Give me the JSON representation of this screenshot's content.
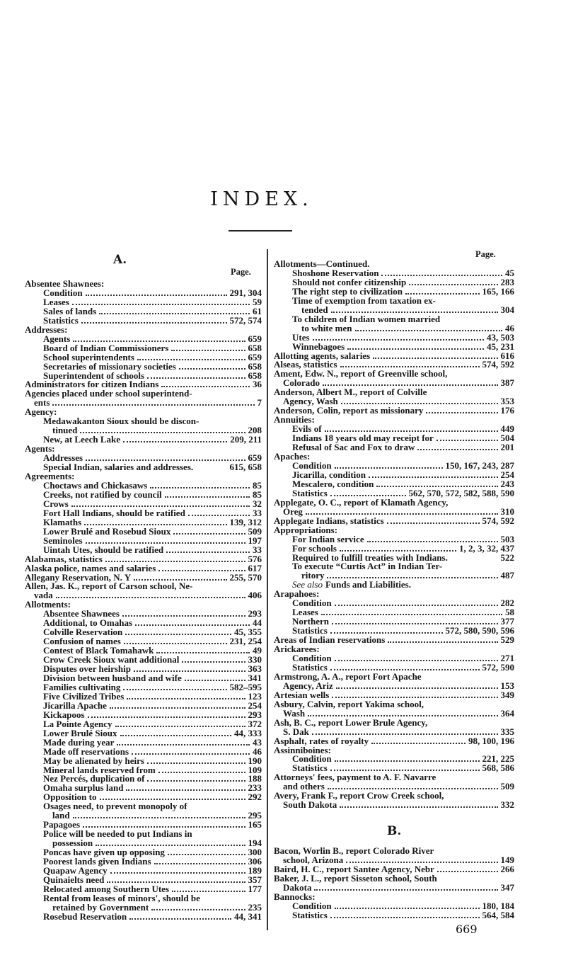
{
  "title": "INDEX.",
  "page_label": "Page.",
  "section_a": "A.",
  "section_b": "B.",
  "page_number": "669",
  "left_column": [
    {
      "t": "Absentee Shawnees:",
      "l": 0
    },
    {
      "t": "Condition",
      "p": "291, 304",
      "l": 1
    },
    {
      "t": "Leases",
      "p": "59",
      "l": 1
    },
    {
      "t": "Sales of lands",
      "p": "61",
      "l": 1
    },
    {
      "t": "Statistics",
      "p": "572, 574",
      "l": 1
    },
    {
      "t": "Addresses:",
      "l": 0
    },
    {
      "t": "Agents",
      "p": "659",
      "l": 1
    },
    {
      "t": "Board of Indian Commissioners",
      "p": "658",
      "l": 1
    },
    {
      "t": "School superintendents",
      "p": "659",
      "l": 1
    },
    {
      "t": "Secretaries of missionary societies",
      "p": "658",
      "l": 1
    },
    {
      "t": "Superintendent of schools",
      "p": "658",
      "l": 1
    },
    {
      "t": "Administrators for citizen Indians",
      "p": "36",
      "l": 0
    },
    {
      "t": "Agencies placed under school superintend-",
      "c": "ents",
      "p": "7",
      "l": 0
    },
    {
      "t": "Agency:",
      "l": 0
    },
    {
      "t": "Medawakanton Sioux should be discon-",
      "c": "tinued",
      "p": "208",
      "l": 1
    },
    {
      "t": "New, at Leech Lake",
      "p": "209, 211",
      "l": 1
    },
    {
      "t": "Agents:",
      "l": 0
    },
    {
      "t": "Addresses",
      "p": "659",
      "l": 1
    },
    {
      "t": "Special Indian, salaries and addresses.",
      "p": "615, 658",
      "l": 1,
      "nodots": true
    },
    {
      "t": "Agreements:",
      "l": 0
    },
    {
      "t": "Choctaws and Chickasaws",
      "p": "85",
      "l": 1
    },
    {
      "t": "Creeks, not ratified by council",
      "p": "85",
      "l": 1
    },
    {
      "t": "Crows",
      "p": "32",
      "l": 1
    },
    {
      "t": "Fort Hall Indians, should be ratified",
      "p": "33",
      "l": 1
    },
    {
      "t": "Klamaths",
      "p": "139, 312",
      "l": 1
    },
    {
      "t": "Lower Brulé and Rosebud Sioux",
      "p": "509",
      "l": 1
    },
    {
      "t": "Seminoles",
      "p": "197",
      "l": 1
    },
    {
      "t": "Uintah Utes, should be ratified",
      "p": "33",
      "l": 1
    },
    {
      "t": "Alabamas, statistics",
      "p": "576",
      "l": 0
    },
    {
      "t": "Alaska police, names and salaries",
      "p": "617",
      "l": 0
    },
    {
      "t": "Allegany Reservation, N. Y",
      "p": "255, 570",
      "l": 0
    },
    {
      "t": "Allen, Jas. K., report of Carson school, Ne-",
      "c": "vada",
      "p": "406",
      "l": 0
    },
    {
      "t": "Allotments:",
      "l": 0
    },
    {
      "t": "Absentee Shawnees",
      "p": "293",
      "l": 1
    },
    {
      "t": "Additional, to Omahas",
      "p": "44",
      "l": 1
    },
    {
      "t": "Colville Reservation",
      "p": "45, 355",
      "l": 1
    },
    {
      "t": "Confusion of names",
      "p": "231, 254",
      "l": 1
    },
    {
      "t": "Contest of Black Tomahawk",
      "p": "49",
      "l": 1
    },
    {
      "t": "Crow Creek Sioux want additional",
      "p": "330",
      "l": 1
    },
    {
      "t": "Disputes over heirship",
      "p": "363",
      "l": 1
    },
    {
      "t": "Division between husband and wife",
      "p": "341",
      "l": 1
    },
    {
      "t": "Families cultivating",
      "p": "582–595",
      "l": 1
    },
    {
      "t": "Five Civilized Tribes",
      "p": "123",
      "l": 1
    },
    {
      "t": "Jicarilla Apache",
      "p": "254",
      "l": 1
    },
    {
      "t": "Kickapoos",
      "p": "293",
      "l": 1
    },
    {
      "t": "La Pointe Agency",
      "p": "372",
      "l": 1
    },
    {
      "t": "Lower Brulé Sioux",
      "p": "44, 333",
      "l": 1
    },
    {
      "t": "Made during year",
      "p": "43",
      "l": 1
    },
    {
      "t": "Made off reservations",
      "p": "46",
      "l": 1
    },
    {
      "t": "May be alienated by heirs",
      "p": "190",
      "l": 1
    },
    {
      "t": "Mineral lands reserved from",
      "p": "109",
      "l": 1
    },
    {
      "t": "Nez Percés, duplication of",
      "p": "188",
      "l": 1
    },
    {
      "t": "Omaha surplus land",
      "p": "233",
      "l": 1
    },
    {
      "t": "Opposition to",
      "p": "292",
      "l": 1
    },
    {
      "t": "Osages need, to prevent monopoly of",
      "c": "land",
      "p": "295",
      "l": 1
    },
    {
      "t": "Papagoes",
      "p": "165",
      "l": 1
    },
    {
      "t": "Police will be needed to put Indians in",
      "c": "possession",
      "p": "194",
      "l": 1
    },
    {
      "t": "Poncas have given up opposing",
      "p": "300",
      "l": 1
    },
    {
      "t": "Poorest lands given Indians",
      "p": "306",
      "l": 1
    },
    {
      "t": "Quapaw Agency",
      "p": "189",
      "l": 1
    },
    {
      "t": "Quinaielts need",
      "p": "357",
      "l": 1
    },
    {
      "t": "Relocated among Southern Utes",
      "p": "177",
      "l": 1
    },
    {
      "t": "Rental from leases of minors', should be",
      "c": "retained by Government",
      "p": "235",
      "l": 1
    },
    {
      "t": "Rosebud Reservation",
      "p": "44, 341",
      "l": 1
    }
  ],
  "right_column": [
    {
      "t": "Allotments—Continued.",
      "l": 0
    },
    {
      "t": "Shoshone Reservation",
      "p": "45",
      "l": 1
    },
    {
      "t": "Should not confer citizenship",
      "p": "283",
      "l": 1
    },
    {
      "t": "The right step to civilization",
      "p": "165, 166",
      "l": 1
    },
    {
      "t": "Time of exemption from taxation ex-",
      "c": "tended",
      "p": "304",
      "l": 1
    },
    {
      "t": "To children of Indian women married",
      "c": "to white men",
      "p": "46",
      "l": 1
    },
    {
      "t": "Utes",
      "p": "43, 503",
      "l": 1
    },
    {
      "t": "Winnebagoes",
      "p": "45, 231",
      "l": 1
    },
    {
      "t": "Allotting agents, salaries",
      "p": "616",
      "l": 0
    },
    {
      "t": "Alseas, statistics",
      "p": "574, 592",
      "l": 0
    },
    {
      "t": "Ament, Edw. N., report of Greenville school,",
      "c": "Colorado",
      "p": "387",
      "l": 0
    },
    {
      "t": "Anderson, Albert M., report of Colville",
      "c": "Agency, Wash",
      "p": "353",
      "l": 0
    },
    {
      "t": "Anderson, Colin, report as missionary",
      "p": "176",
      "l": 0
    },
    {
      "t": "Annuities:",
      "l": 0
    },
    {
      "t": "Evils of",
      "p": "449",
      "l": 1
    },
    {
      "t": "Indians 18 years old may receipt for",
      "p": "504",
      "l": 1
    },
    {
      "t": "Refusal of Sac and Fox to draw",
      "p": "201",
      "l": 1
    },
    {
      "t": "Apaches:",
      "l": 0
    },
    {
      "t": "Condition",
      "p": "150, 167, 243, 287",
      "l": 1
    },
    {
      "t": "Jicarilla, condition",
      "p": "254",
      "l": 1
    },
    {
      "t": "Mescalero, condition",
      "p": "243",
      "l": 1
    },
    {
      "t": "Statistics",
      "p": "562, 570, 572, 582, 588, 590",
      "l": 1
    },
    {
      "t": "Applegate, O. C., report of Klamath Agency,",
      "c": "Oreg",
      "p": "310",
      "l": 0
    },
    {
      "t": "Applegate Indians, statistics",
      "p": "574, 592",
      "l": 0
    },
    {
      "t": "Appropriations:",
      "l": 0
    },
    {
      "t": "For Indian service",
      "p": "503",
      "l": 1
    },
    {
      "t": "For schools",
      "p": "1, 2, 3, 32, 437",
      "l": 1
    },
    {
      "t": "Required to fulfill treaties with Indians.",
      "p": "522",
      "l": 1,
      "nodots": true
    },
    {
      "t": "To execute “Curtis Act” in Indian Ter-",
      "c": "ritory",
      "p": "487",
      "l": 1
    },
    {
      "i": "See also",
      "t": "Funds and Liabilities.",
      "l": 1
    },
    {
      "t": "Arapahoes:",
      "l": 0
    },
    {
      "t": "Condition",
      "p": "282",
      "l": 1
    },
    {
      "t": "Leases",
      "p": "58",
      "l": 1
    },
    {
      "t": "Northern",
      "p": "377",
      "l": 1
    },
    {
      "t": "Statistics",
      "p": "572, 580, 590, 596",
      "l": 1
    },
    {
      "t": "Areas of Indian reservations",
      "p": "529",
      "l": 0
    },
    {
      "t": "Arickarees:",
      "l": 0
    },
    {
      "t": "Condition",
      "p": "271",
      "l": 1
    },
    {
      "t": "Statistics",
      "p": "572, 590",
      "l": 1
    },
    {
      "t": "Armstrong, A. A., report Fort Apache",
      "c": "Agency, Ariz",
      "p": "153",
      "l": 0
    },
    {
      "t": "Artesian wells",
      "p": "349",
      "l": 0
    },
    {
      "t": "Asbury, Calvin, report Yakima school,",
      "c": "Wash",
      "p": "364",
      "l": 0
    },
    {
      "t": "Ash, B. C., report Lower Brule Agency,",
      "c": "S. Dak",
      "p": "335",
      "l": 0
    },
    {
      "t": "Asphalt, rates of royalty",
      "p": "98, 100, 196",
      "l": 0
    },
    {
      "t": "Assinniboines:",
      "l": 0
    },
    {
      "t": "Condition",
      "p": "221, 225",
      "l": 1
    },
    {
      "t": "Statistics",
      "p": "568, 586",
      "l": 1
    },
    {
      "t": "Attorneys' fees, payment to A. F. Navarre",
      "c": "and others",
      "p": "509",
      "l": 0
    },
    {
      "t": "Avery, Frank F., report Crow Creek school,",
      "c": "South Dakota",
      "p": "332",
      "l": 0
    }
  ],
  "b_column": [
    {
      "t": "Bacon, Worlin B., report Colorado River",
      "c": "school, Arizona",
      "p": "149",
      "l": 0
    },
    {
      "t": "Baird, H. C., report Santee Agency, Nebr",
      "p": "266",
      "l": 0
    },
    {
      "t": "Baker, J. L., report Sisseton school, South",
      "c": "Dakota",
      "p": "347",
      "l": 0
    },
    {
      "t": "Bannocks:",
      "l": 0
    },
    {
      "t": "Condition",
      "p": "180, 184",
      "l": 1
    },
    {
      "t": "Statistics",
      "p": "564, 584",
      "l": 1
    }
  ]
}
